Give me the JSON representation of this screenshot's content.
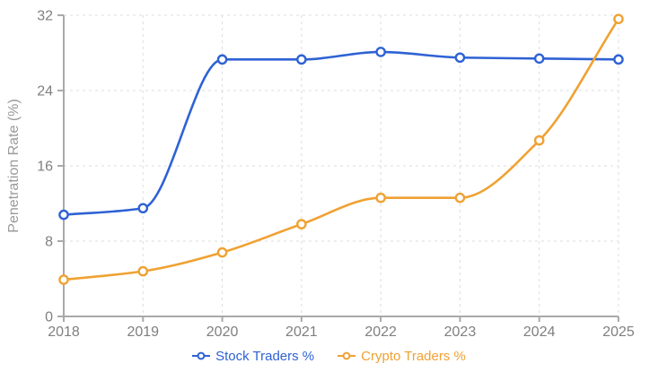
{
  "chart_data": {
    "type": "line",
    "title": "",
    "xlabel": "",
    "ylabel": "Penetration Rate (%)",
    "x": [
      2018,
      2019,
      2020,
      2021,
      2022,
      2023,
      2024,
      2025
    ],
    "series": [
      {
        "name": "Stock Traders %",
        "color": "#2e62d4",
        "values": [
          10.8,
          11.5,
          27.3,
          27.3,
          28.1,
          27.5,
          27.4,
          27.3
        ]
      },
      {
        "name": "Crypto Traders %",
        "color": "#f0a132",
        "values": [
          3.9,
          4.8,
          6.8,
          9.8,
          12.6,
          12.6,
          18.7,
          31.6
        ]
      }
    ],
    "ylim": [
      0,
      32
    ],
    "yticks": [
      0,
      8,
      16,
      24,
      32
    ],
    "grid": true,
    "grid_style": "dashed",
    "legend_position": "bottom",
    "marker": "open-circle",
    "smooth": true,
    "colors": {
      "grid_line": "#dcdcdc",
      "axis_line": "#a9a9a9",
      "tick_label": "#7f7f7f",
      "axis_title": "#9a9a9a",
      "point_fill": "#ffffff",
      "background": "#ffffff"
    }
  }
}
